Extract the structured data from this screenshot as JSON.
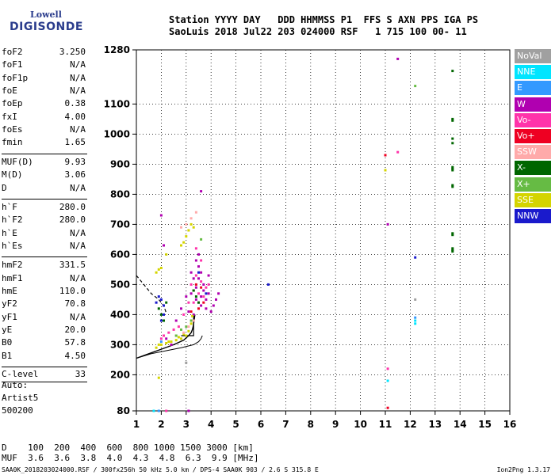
{
  "logo": {
    "line1": "Lowell",
    "line2": "DIGISONDE"
  },
  "header": {
    "row1": "Station YYYY DAY   DDD HHMMSS P1  FFS S AXN PPS IGA PS",
    "row2": "SaoLuis 2018 Jul22 203 024000 RSF   1 715 100 00- 11"
  },
  "params_group1": [
    {
      "name": "foF2",
      "value": "3.250"
    },
    {
      "name": "foF1",
      "value": "N/A"
    },
    {
      "name": "foF1p",
      "value": "N/A"
    },
    {
      "name": "foE",
      "value": "N/A"
    },
    {
      "name": "foEp",
      "value": "0.38"
    },
    {
      "name": "fxI",
      "value": "4.00"
    },
    {
      "name": "foEs",
      "value": "N/A"
    },
    {
      "name": "fmin",
      "value": "1.65"
    }
  ],
  "params_group2": [
    {
      "name": "MUF(D)",
      "value": "9.93"
    },
    {
      "name": "M(D)",
      "value": "3.06"
    },
    {
      "name": "D",
      "value": "N/A"
    }
  ],
  "params_group3": [
    {
      "name": "h`F",
      "value": "280.0"
    },
    {
      "name": "h`F2",
      "value": "280.0"
    },
    {
      "name": "h`E",
      "value": "N/A"
    },
    {
      "name": "h`Es",
      "value": "N/A"
    }
  ],
  "params_group4": [
    {
      "name": "hmF2",
      "value": "331.5"
    },
    {
      "name": "hmF1",
      "value": "N/A"
    },
    {
      "name": "hmE",
      "value": "110.0"
    },
    {
      "name": "yF2",
      "value": "70.8"
    },
    {
      "name": "yF1",
      "value": "N/A"
    },
    {
      "name": "yE",
      "value": "20.0"
    },
    {
      "name": "B0",
      "value": "57.8"
    },
    {
      "name": "B1",
      "value": "4.50"
    }
  ],
  "clevel": {
    "name": "C-level",
    "value": "33"
  },
  "auto": {
    "line1": "Auto:",
    "line2": "Artist5",
    "line3": "500200"
  },
  "legend": [
    {
      "label": "NoVal",
      "color": "#a0a0a0"
    },
    {
      "label": "NNE",
      "color": "#00e5ff"
    },
    {
      "label": "E",
      "color": "#3399ff"
    },
    {
      "label": "W",
      "color": "#b000b0"
    },
    {
      "label": "Vo-",
      "color": "#ff33aa"
    },
    {
      "label": "Vo+",
      "color": "#ee0022"
    },
    {
      "label": "SSW",
      "color": "#ffaaaa"
    },
    {
      "label": "X-",
      "color": "#006600"
    },
    {
      "label": "X+",
      "color": "#66bb44"
    },
    {
      "label": "SSE",
      "color": "#d4d400"
    },
    {
      "label": "NNW",
      "color": "#1a1acc"
    }
  ],
  "bottom": {
    "row1": "D    100  200  400  600  800 1000 1500 3000 [km]",
    "row2": "MUF  3.6  3.6  3.8  4.0  4.3  4.8  6.3  9.9 [MHz]"
  },
  "footer": {
    "left": "SAA0K_2018203024000.RSF / 300fx256h 50 kHz 5.0 km / DPS-4 SAA0K 903 / 2.6 S 315.8 E",
    "right": "Ion2Png 1.3.17"
  },
  "chart_data": {
    "type": "scatter",
    "xlabel": "",
    "ylabel": "",
    "xlim": [
      1,
      16
    ],
    "ylim": [
      80,
      1280
    ],
    "xticks": [
      1,
      2,
      3,
      4,
      5,
      6,
      7,
      8,
      9,
      10,
      11,
      12,
      13,
      14,
      15,
      16
    ],
    "yticks": [
      80,
      200,
      300,
      400,
      500,
      600,
      700,
      800,
      900,
      1000,
      1100,
      1280
    ],
    "series": [
      {
        "name": "W",
        "color": "#b000b0",
        "points": [
          [
            3.3,
            520
          ],
          [
            3.5,
            560
          ],
          [
            3.7,
            480
          ],
          [
            3.4,
            450
          ],
          [
            3.6,
            430
          ],
          [
            3.8,
            420
          ],
          [
            3.2,
            470
          ],
          [
            3.9,
            470
          ],
          [
            3.5,
            600
          ],
          [
            3.6,
            540
          ],
          [
            3.3,
            400
          ],
          [
            3.7,
            500
          ],
          [
            3.4,
            580
          ],
          [
            3.8,
            450
          ],
          [
            4.1,
            430
          ],
          [
            4.3,
            470
          ],
          [
            2.6,
            380
          ],
          [
            2.8,
            420
          ],
          [
            3.0,
            460
          ],
          [
            3.1,
            410
          ],
          [
            3.5,
            520
          ],
          [
            3.6,
            460
          ],
          [
            3.4,
            490
          ],
          [
            3.2,
            540
          ],
          [
            3.9,
            530
          ],
          [
            4.0,
            410
          ],
          [
            4.2,
            450
          ],
          [
            2.1,
            630
          ],
          [
            2.0,
            730
          ],
          [
            3.6,
            810
          ],
          [
            11.0,
            930
          ],
          [
            11.1,
            700
          ],
          [
            11.5,
            1250
          ],
          [
            3.1,
            80
          ],
          [
            2.4,
            300
          ],
          [
            2.2,
            320
          ]
        ]
      },
      {
        "name": "Vo-",
        "color": "#ff33aa",
        "points": [
          [
            3.4,
            530
          ],
          [
            3.6,
            510
          ],
          [
            3.5,
            470
          ],
          [
            3.3,
            440
          ],
          [
            3.7,
            460
          ],
          [
            3.2,
            500
          ],
          [
            3.8,
            490
          ],
          [
            3.5,
            440
          ],
          [
            3.4,
            620
          ],
          [
            3.6,
            580
          ],
          [
            3.9,
            500
          ],
          [
            3.1,
            440
          ],
          [
            2.9,
            400
          ],
          [
            2.7,
            360
          ],
          [
            2.5,
            350
          ],
          [
            2.3,
            340
          ],
          [
            2.1,
            330
          ],
          [
            2.0,
            320
          ],
          [
            11.5,
            940
          ],
          [
            11.1,
            220
          ],
          [
            2.2,
            80
          ]
        ]
      },
      {
        "name": "Vo+",
        "color": "#ee0022",
        "points": [
          [
            3.4,
            500
          ],
          [
            3.5,
            420
          ],
          [
            3.3,
            480
          ],
          [
            3.7,
            440
          ],
          [
            3.6,
            490
          ],
          [
            3.2,
            410
          ],
          [
            11.0,
            930
          ],
          [
            11.1,
            90
          ]
        ]
      },
      {
        "name": "SSE",
        "color": "#d4d400",
        "points": [
          [
            1.8,
            290
          ],
          [
            2.0,
            300
          ],
          [
            2.2,
            305
          ],
          [
            2.4,
            310
          ],
          [
            2.6,
            315
          ],
          [
            2.8,
            320
          ],
          [
            3.0,
            330
          ],
          [
            3.1,
            345
          ],
          [
            3.2,
            370
          ],
          [
            3.25,
            395
          ],
          [
            1.9,
            300
          ],
          [
            2.3,
            310
          ],
          [
            2.7,
            325
          ],
          [
            2.9,
            335
          ],
          [
            3.0,
            660
          ],
          [
            3.1,
            680
          ],
          [
            3.2,
            700
          ],
          [
            2.9,
            640
          ],
          [
            2.8,
            630
          ],
          [
            3.3,
            690
          ],
          [
            1.8,
            540
          ],
          [
            1.9,
            550
          ],
          [
            2.0,
            555
          ],
          [
            2.2,
            600
          ],
          [
            1.9,
            190
          ],
          [
            11.0,
            880
          ]
        ]
      },
      {
        "name": "SSW",
        "color": "#ffaaaa",
        "points": [
          [
            3.0,
            700
          ],
          [
            3.2,
            720
          ],
          [
            2.8,
            690
          ],
          [
            3.4,
            740
          ],
          [
            3.1,
            360
          ],
          [
            3.3,
            380
          ],
          [
            2.6,
            330
          ],
          [
            2.9,
            340
          ]
        ]
      },
      {
        "name": "X-",
        "color": "#006600",
        "points": [
          [
            1.9,
            420
          ],
          [
            2.0,
            400
          ],
          [
            2.1,
            380
          ],
          [
            2.2,
            440
          ],
          [
            3.3,
            480
          ],
          [
            3.4,
            460
          ],
          [
            3.5,
            440
          ],
          [
            13.7,
            1210
          ],
          [
            13.7,
            1050
          ],
          [
            13.7,
            1045
          ],
          [
            13.7,
            985
          ],
          [
            13.7,
            970
          ],
          [
            13.7,
            890
          ],
          [
            13.7,
            885
          ],
          [
            13.7,
            880
          ],
          [
            13.7,
            830
          ],
          [
            13.7,
            825
          ],
          [
            13.7,
            670
          ],
          [
            13.7,
            665
          ],
          [
            13.7,
            620
          ],
          [
            13.7,
            615
          ],
          [
            13.7,
            610
          ]
        ]
      },
      {
        "name": "X+",
        "color": "#66bb44",
        "points": [
          [
            2.6,
            330
          ],
          [
            2.8,
            350
          ],
          [
            3.0,
            360
          ],
          [
            3.2,
            380
          ],
          [
            3.6,
            650
          ],
          [
            12.2,
            1160
          ]
        ]
      },
      {
        "name": "NNW",
        "color": "#1a1acc",
        "points": [
          [
            1.8,
            440
          ],
          [
            1.9,
            460
          ],
          [
            2.0,
            450
          ],
          [
            2.1,
            430
          ],
          [
            2.1,
            400
          ],
          [
            2.0,
            380
          ],
          [
            6.3,
            500
          ],
          [
            12.2,
            590
          ],
          [
            3.5,
            540
          ],
          [
            3.8,
            470
          ]
        ]
      },
      {
        "name": "NNE",
        "color": "#00e5ff",
        "points": [
          [
            12.2,
            380
          ],
          [
            12.2,
            370
          ],
          [
            11.1,
            180
          ],
          [
            1.7,
            80
          ]
        ]
      },
      {
        "name": "E",
        "color": "#3399ff",
        "points": [
          [
            12.2,
            390
          ],
          [
            2.0,
            310
          ],
          [
            1.9,
            80
          ]
        ]
      },
      {
        "name": "NoVal",
        "color": "#a0a0a0",
        "points": [
          [
            12.2,
            450
          ],
          [
            3.0,
            240
          ]
        ]
      }
    ],
    "traces": {
      "black_solid": [
        [
          1,
          255
        ],
        [
          1.5,
          270
        ],
        [
          2,
          285
        ],
        [
          2.5,
          300
        ],
        [
          2.9,
          315
        ],
        [
          3.1,
          330
        ],
        [
          3.2,
          340
        ],
        [
          3.25,
          350
        ],
        [
          3.28,
          360
        ],
        [
          3.3,
          370
        ],
        [
          3.32,
          380
        ],
        [
          3.35,
          400
        ]
      ],
      "black_lower": [
        [
          1,
          255
        ],
        [
          1.6,
          270
        ],
        [
          2.2,
          280
        ],
        [
          2.8,
          290
        ],
        [
          3.3,
          300
        ],
        [
          3.5,
          310
        ],
        [
          3.6,
          320
        ],
        [
          3.65,
          330
        ]
      ],
      "black_dashed": [
        [
          1,
          530
        ],
        [
          1.3,
          500
        ],
        [
          1.6,
          470
        ],
        [
          1.9,
          450
        ],
        [
          2.1,
          430
        ],
        [
          2.2,
          405
        ]
      ],
      "black_box": [
        [
          2.8,
          330
        ],
        [
          3.3,
          330
        ],
        [
          3.3,
          395
        ],
        [
          3.35,
          395
        ]
      ]
    }
  }
}
